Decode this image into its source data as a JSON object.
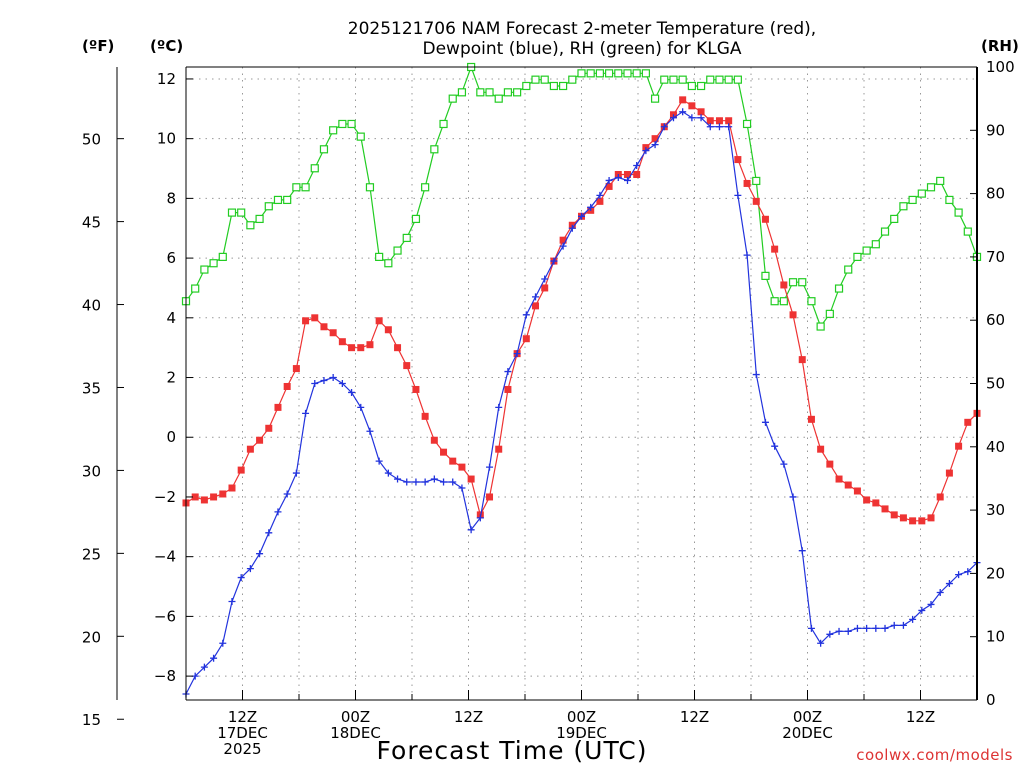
{
  "chart_data": {
    "type": "line",
    "title_line1": "2025121706 NAM Forecast 2-meter Temperature (red),",
    "title_line2": "Dewpoint (blue), RH (green) for KLGA",
    "unit_f": "(ºF)",
    "unit_c": "(ºC)",
    "unit_rh": "(RH)",
    "xlabel": "Forecast Time (UTC)",
    "credit": "coolwx.com/models",
    "x_range_hours": [
      6,
      90
    ],
    "x_ticks": [
      {
        "hour": 12,
        "lines": [
          "12Z",
          "17DEC",
          "2025"
        ]
      },
      {
        "hour": 24,
        "lines": [
          "00Z",
          "18DEC"
        ]
      },
      {
        "hour": 36,
        "lines": [
          "12Z"
        ]
      },
      {
        "hour": 48,
        "lines": [
          "00Z",
          "19DEC"
        ]
      },
      {
        "hour": 60,
        "lines": [
          "12Z"
        ]
      },
      {
        "hour": 72,
        "lines": [
          "00Z",
          "20DEC"
        ]
      },
      {
        "hour": 84,
        "lines": [
          "12Z"
        ]
      }
    ],
    "y_celsius": {
      "range": [
        -8.8,
        12.4
      ],
      "ticks": [
        "-8",
        "-6",
        "-4",
        "-2",
        "0",
        "2",
        "4",
        "6",
        "8",
        "10",
        "12"
      ]
    },
    "y_fahrenheit": {
      "ticks": [
        "15",
        "20",
        "25",
        "30",
        "35",
        "40",
        "45",
        "50"
      ]
    },
    "y_rh": {
      "range": [
        0,
        100
      ],
      "ticks": [
        "0",
        "10",
        "20",
        "30",
        "40",
        "50",
        "60",
        "70",
        "80",
        "90",
        "100"
      ]
    },
    "grid": true,
    "series": [
      {
        "key": "temperature",
        "unit": "C",
        "color": "#ee3333",
        "marker": "filled-square",
        "values": [
          -2.2,
          -2.0,
          -2.1,
          -2.0,
          -1.9,
          -1.7,
          -1.1,
          -0.4,
          -0.1,
          0.3,
          1.0,
          1.7,
          2.3,
          3.9,
          4.0,
          3.7,
          3.5,
          3.2,
          3.0,
          3.0,
          3.1,
          3.9,
          3.6,
          3.0,
          2.4,
          1.6,
          0.7,
          -0.1,
          -0.5,
          -0.8,
          -1.0,
          -1.4,
          -2.6,
          -2.0,
          -0.4,
          1.6,
          2.8,
          3.3,
          4.4,
          5.0,
          5.9,
          6.6,
          7.1,
          7.4,
          7.6,
          7.9,
          8.4,
          8.8,
          8.8,
          8.8,
          9.7,
          10.0,
          10.4,
          10.8,
          11.3,
          11.1,
          10.9,
          10.6,
          10.6,
          10.6,
          9.3,
          8.5,
          7.9,
          7.3,
          6.3,
          5.1,
          4.1,
          2.6,
          0.6,
          -0.4,
          -0.9,
          -1.4,
          -1.6,
          -1.8,
          -2.1,
          -2.2,
          -2.4,
          -2.6,
          -2.7,
          -2.8,
          -2.8,
          -2.7,
          -2.0,
          -1.2,
          -0.3,
          0.5,
          0.8
        ]
      },
      {
        "key": "dewpoint",
        "unit": "C",
        "color": "#2233dd",
        "marker": "plus",
        "values": [
          -8.6,
          -8.0,
          -7.7,
          -7.4,
          -6.9,
          -5.5,
          -4.7,
          -4.4,
          -3.9,
          -3.2,
          -2.5,
          -1.9,
          -1.2,
          0.8,
          1.8,
          1.9,
          2.0,
          1.8,
          1.5,
          1.0,
          0.2,
          -0.8,
          -1.2,
          -1.4,
          -1.5,
          -1.5,
          -1.5,
          -1.4,
          -1.5,
          -1.5,
          -1.7,
          -3.1,
          -2.7,
          -1.0,
          1.0,
          2.2,
          2.8,
          4.1,
          4.7,
          5.3,
          5.9,
          6.4,
          7.0,
          7.4,
          7.7,
          8.1,
          8.6,
          8.7,
          8.6,
          9.1,
          9.6,
          9.8,
          10.4,
          10.7,
          10.9,
          10.7,
          10.7,
          10.4,
          10.4,
          10.4,
          8.1,
          6.1,
          2.1,
          0.5,
          -0.3,
          -0.9,
          -2.0,
          -3.8,
          -6.4,
          -6.9,
          -6.6,
          -6.5,
          -6.5,
          -6.4,
          -6.4,
          -6.4,
          -6.4,
          -6.3,
          -6.3,
          -6.1,
          -5.8,
          -5.6,
          -5.2,
          -4.9,
          -4.6,
          -4.5,
          -4.2
        ]
      },
      {
        "key": "rh",
        "unit": "percent",
        "color": "#22cc22",
        "marker": "hollow-square",
        "values": [
          63,
          65,
          68,
          69,
          70,
          77,
          77,
          75,
          76,
          78,
          79,
          79,
          81,
          81,
          84,
          87,
          90,
          91,
          91,
          89,
          81,
          70,
          69,
          71,
          73,
          76,
          81,
          87,
          91,
          95,
          96,
          100,
          96,
          96,
          95,
          96,
          96,
          97,
          98,
          98,
          97,
          97,
          98,
          99,
          99,
          99,
          99,
          99,
          99,
          99,
          99,
          95,
          98,
          98,
          98,
          97,
          97,
          98,
          98,
          98,
          98,
          91,
          82,
          67,
          63,
          63,
          66,
          66,
          63,
          59,
          61,
          65,
          68,
          70,
          71,
          72,
          74,
          76,
          78,
          79,
          80,
          81,
          82,
          79,
          77,
          74,
          70
        ]
      }
    ]
  }
}
